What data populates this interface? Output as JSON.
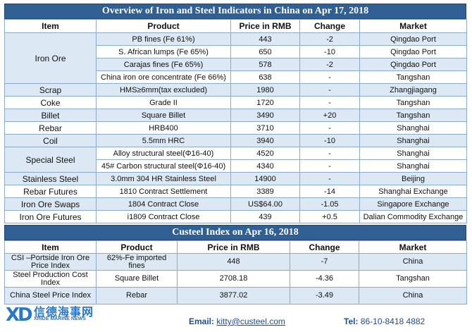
{
  "table1": {
    "title": "Overview of Iron and Steel Indicators in China on Apr 17, 2018",
    "headers": [
      "Item",
      "Product",
      "Price in RMB",
      "Change",
      "Market"
    ],
    "iron_ore": "Iron Ore",
    "rows": [
      {
        "product": "PB fines (Fe 61%)",
        "price": "443",
        "change": "-2",
        "market": "Qingdao Port"
      },
      {
        "product": "S. African lumps (Fe 65%)",
        "price": "650",
        "change": "-10",
        "market": "Qingdao Port"
      },
      {
        "product": "Carajas fines (Fe 65%)",
        "price": "578",
        "change": "-2",
        "market": "Qingdao Port"
      },
      {
        "product": "China iron ore concentrate (Fe 66%)",
        "price": "638",
        "change": "-",
        "market": "Tangshan"
      },
      {
        "item": "Scrap",
        "product": "HMS≥6mm(tax excluded)",
        "price": "1980",
        "change": "-",
        "market": "Zhangjiagang"
      },
      {
        "item": "Coke",
        "product": "Grade II",
        "price": "1720",
        "change": "-",
        "market": "Tangshan"
      },
      {
        "item": "Billet",
        "product": "Square Billet",
        "price": "3490",
        "change": "+20",
        "market": "Tangshan"
      },
      {
        "item": "Rebar",
        "product": "HRB400",
        "price": "3710",
        "change": "-",
        "market": "Shanghai"
      },
      {
        "item": "Coil",
        "product": "5.5mm HRC",
        "price": "3940",
        "change": "-10",
        "market": "Shanghai"
      }
    ],
    "special_steel": "Special Steel",
    "special_rows": [
      {
        "product": "Alloy structural steel(Φ16-40)",
        "price": "4520",
        "change": "-",
        "market": "Shanghai"
      },
      {
        "product": "45# Carbon structural steel(Φ16-40)",
        "price": "4340",
        "change": "-",
        "market": "Shanghai"
      }
    ],
    "rows_b": [
      {
        "item": "Stainless Steel",
        "product": "3.0mm 304 HR Stainless Steel",
        "price": "14900",
        "change": "-",
        "market": "Beijing"
      },
      {
        "item": "Rebar Futures",
        "product": "1810 Contract Settlement",
        "price": "3389",
        "change": "-14",
        "market": "Shanghai Exchange"
      },
      {
        "item": "Iron Ore Swaps",
        "product": "1804 Contract Close",
        "price": "US$64.00",
        "change": "-1.05",
        "market": "Singapore Exchange"
      },
      {
        "item": "Iron Ore Futures",
        "product": "i1809 Contract Close",
        "price": "439",
        "change": "+0.5",
        "market": "Dalian Commodity Exchange"
      }
    ]
  },
  "table2": {
    "title": "Custeel Index on Apr 16, 2018",
    "headers": [
      "Item",
      "Product",
      "Price in RMB",
      "Change",
      "Market"
    ],
    "rows": [
      {
        "item": "CSI –Portside Iron Ore Price Index",
        "product": "62%-Fe imported fines",
        "price": "448",
        "change": "-7",
        "market": "China"
      },
      {
        "item": "Steel Production Cost Index",
        "product": "Square Billet",
        "price": "2708.18",
        "change": "-4.36",
        "market": "Tangshan"
      },
      {
        "item": "China Steel Price Index",
        "product": "Rebar",
        "price": "3877.02",
        "change": "-3.49",
        "market": "China"
      }
    ]
  },
  "footer": {
    "logo_letters": "XD",
    "logo_cn": "信德海事网",
    "logo_en": "XINDE MARINE NEWS",
    "email_label": "Email:",
    "email": "kitty@custeel.com",
    "tel_label": "Tel:",
    "tel": "86-10-8418 4882"
  },
  "colors": {
    "banner": "#2f5f93",
    "row_alt": "#dce8f4",
    "border": "#8eaacb"
  }
}
